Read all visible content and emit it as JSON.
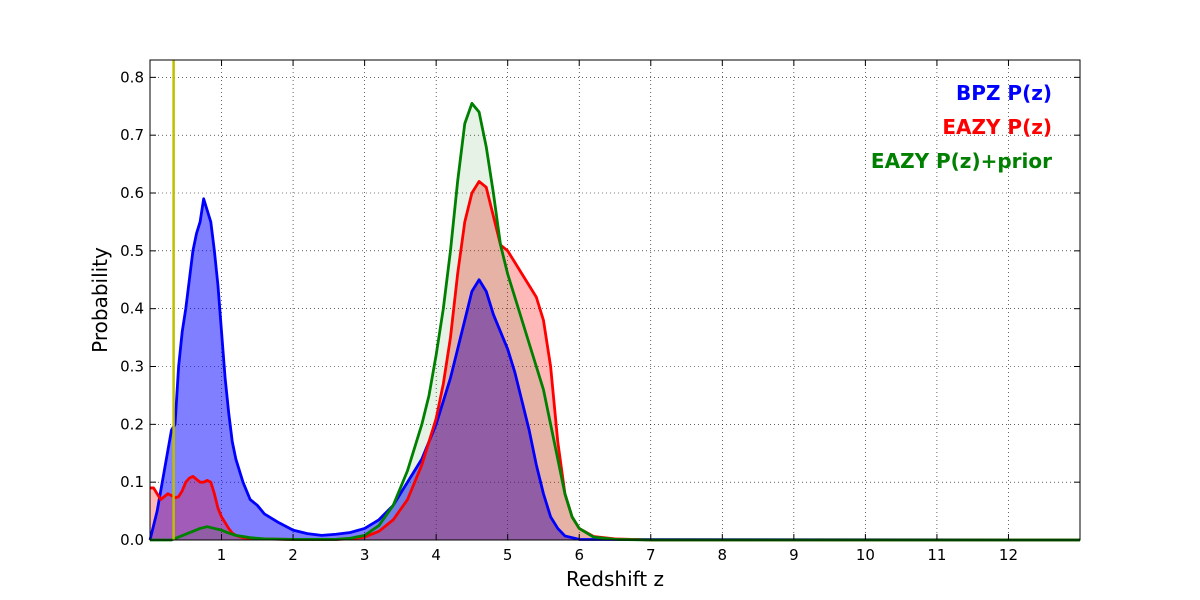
{
  "chart_data": {
    "type": "area",
    "title": "",
    "xlabel": "Redshift z",
    "ylabel": "Probability",
    "xlim": [
      0,
      13
    ],
    "ylim": [
      0,
      0.83
    ],
    "grid": true,
    "grid_style": "dotted",
    "legend_placement": "top-right",
    "x_ticks": [
      1,
      2,
      3,
      4,
      5,
      6,
      7,
      8,
      9,
      10,
      11,
      12
    ],
    "y_ticks": [
      0.0,
      0.1,
      0.2,
      0.3,
      0.4,
      0.5,
      0.6,
      0.7,
      0.8
    ],
    "vertical_line": {
      "x": 0.33,
      "color": "#bfbf00"
    },
    "series": [
      {
        "name": "BPZ P(z)",
        "color": "#0000ff",
        "fill_opacity": 0.5,
        "points": [
          [
            0,
            0
          ],
          [
            0.1,
            0.05
          ],
          [
            0.2,
            0.12
          ],
          [
            0.3,
            0.19
          ],
          [
            0.35,
            0.2
          ],
          [
            0.4,
            0.3
          ],
          [
            0.45,
            0.36
          ],
          [
            0.5,
            0.4
          ],
          [
            0.55,
            0.45
          ],
          [
            0.6,
            0.5
          ],
          [
            0.65,
            0.53
          ],
          [
            0.7,
            0.55
          ],
          [
            0.75,
            0.59
          ],
          [
            0.8,
            0.57
          ],
          [
            0.85,
            0.55
          ],
          [
            0.9,
            0.5
          ],
          [
            0.95,
            0.44
          ],
          [
            1.0,
            0.36
          ],
          [
            1.05,
            0.28
          ],
          [
            1.1,
            0.22
          ],
          [
            1.15,
            0.17
          ],
          [
            1.2,
            0.14
          ],
          [
            1.3,
            0.1
          ],
          [
            1.4,
            0.07
          ],
          [
            1.5,
            0.06
          ],
          [
            1.6,
            0.045
          ],
          [
            1.8,
            0.03
          ],
          [
            2.0,
            0.017
          ],
          [
            2.2,
            0.011
          ],
          [
            2.4,
            0.008
          ],
          [
            2.6,
            0.01
          ],
          [
            2.8,
            0.013
          ],
          [
            3.0,
            0.02
          ],
          [
            3.2,
            0.035
          ],
          [
            3.4,
            0.06
          ],
          [
            3.6,
            0.1
          ],
          [
            3.8,
            0.14
          ],
          [
            4.0,
            0.2
          ],
          [
            4.2,
            0.28
          ],
          [
            4.3,
            0.33
          ],
          [
            4.4,
            0.38
          ],
          [
            4.5,
            0.43
          ],
          [
            4.6,
            0.45
          ],
          [
            4.7,
            0.43
          ],
          [
            4.8,
            0.39
          ],
          [
            4.9,
            0.36
          ],
          [
            5.0,
            0.33
          ],
          [
            5.1,
            0.29
          ],
          [
            5.2,
            0.24
          ],
          [
            5.3,
            0.19
          ],
          [
            5.4,
            0.13
          ],
          [
            5.5,
            0.08
          ],
          [
            5.6,
            0.04
          ],
          [
            5.7,
            0.02
          ],
          [
            5.8,
            0.007
          ],
          [
            6.0,
            0.001
          ],
          [
            13,
            0
          ]
        ]
      },
      {
        "name": "EAZY P(z)",
        "color": "#ff0000",
        "fill_opacity": 0.28,
        "points": [
          [
            0,
            0.09
          ],
          [
            0.05,
            0.09
          ],
          [
            0.1,
            0.08
          ],
          [
            0.15,
            0.07
          ],
          [
            0.2,
            0.075
          ],
          [
            0.25,
            0.08
          ],
          [
            0.3,
            0.077
          ],
          [
            0.35,
            0.073
          ],
          [
            0.4,
            0.075
          ],
          [
            0.45,
            0.085
          ],
          [
            0.5,
            0.1
          ],
          [
            0.55,
            0.107
          ],
          [
            0.6,
            0.11
          ],
          [
            0.7,
            0.1
          ],
          [
            0.75,
            0.1
          ],
          [
            0.8,
            0.103
          ],
          [
            0.85,
            0.1
          ],
          [
            0.9,
            0.08
          ],
          [
            0.95,
            0.055
          ],
          [
            1.0,
            0.04
          ],
          [
            1.05,
            0.03
          ],
          [
            1.1,
            0.02
          ],
          [
            1.15,
            0.012
          ],
          [
            1.2,
            0.008
          ],
          [
            1.3,
            0.004
          ],
          [
            1.5,
            0.002
          ],
          [
            2.0,
            0.001
          ],
          [
            2.6,
            0.001
          ],
          [
            2.8,
            0.002
          ],
          [
            3.0,
            0.005
          ],
          [
            3.2,
            0.015
          ],
          [
            3.4,
            0.035
          ],
          [
            3.6,
            0.07
          ],
          [
            3.8,
            0.13
          ],
          [
            4.0,
            0.21
          ],
          [
            4.1,
            0.27
          ],
          [
            4.2,
            0.35
          ],
          [
            4.3,
            0.46
          ],
          [
            4.4,
            0.55
          ],
          [
            4.5,
            0.6
          ],
          [
            4.6,
            0.62
          ],
          [
            4.7,
            0.61
          ],
          [
            4.8,
            0.56
          ],
          [
            4.9,
            0.51
          ],
          [
            5.0,
            0.5
          ],
          [
            5.1,
            0.48
          ],
          [
            5.2,
            0.46
          ],
          [
            5.3,
            0.44
          ],
          [
            5.4,
            0.42
          ],
          [
            5.5,
            0.38
          ],
          [
            5.6,
            0.3
          ],
          [
            5.7,
            0.17
          ],
          [
            5.8,
            0.08
          ],
          [
            5.9,
            0.04
          ],
          [
            6.0,
            0.02
          ],
          [
            6.2,
            0.006
          ],
          [
            6.5,
            0.002
          ],
          [
            7.0,
            0
          ],
          [
            13,
            0
          ]
        ]
      },
      {
        "name": "EAZY P(z)+prior",
        "color": "#008000",
        "fill_opacity": 0.1,
        "points": [
          [
            0,
            0
          ],
          [
            0.3,
            0
          ],
          [
            0.4,
            0.005
          ],
          [
            0.5,
            0.01
          ],
          [
            0.6,
            0.015
          ],
          [
            0.7,
            0.02
          ],
          [
            0.8,
            0.023
          ],
          [
            0.9,
            0.02
          ],
          [
            1.0,
            0.017
          ],
          [
            1.1,
            0.012
          ],
          [
            1.2,
            0.008
          ],
          [
            1.4,
            0.004
          ],
          [
            1.6,
            0.002
          ],
          [
            2.0,
            0.001
          ],
          [
            2.6,
            0.001
          ],
          [
            2.8,
            0.003
          ],
          [
            3.0,
            0.008
          ],
          [
            3.2,
            0.025
          ],
          [
            3.4,
            0.06
          ],
          [
            3.6,
            0.12
          ],
          [
            3.8,
            0.2
          ],
          [
            3.9,
            0.25
          ],
          [
            4.0,
            0.32
          ],
          [
            4.1,
            0.4
          ],
          [
            4.2,
            0.5
          ],
          [
            4.3,
            0.62
          ],
          [
            4.4,
            0.72
          ],
          [
            4.5,
            0.755
          ],
          [
            4.6,
            0.74
          ],
          [
            4.7,
            0.68
          ],
          [
            4.8,
            0.6
          ],
          [
            4.9,
            0.51
          ],
          [
            5.0,
            0.46
          ],
          [
            5.1,
            0.42
          ],
          [
            5.2,
            0.38
          ],
          [
            5.3,
            0.34
          ],
          [
            5.4,
            0.3
          ],
          [
            5.5,
            0.26
          ],
          [
            5.6,
            0.2
          ],
          [
            5.7,
            0.14
          ],
          [
            5.8,
            0.08
          ],
          [
            5.9,
            0.04
          ],
          [
            6.0,
            0.02
          ],
          [
            6.2,
            0.005
          ],
          [
            6.5,
            0.001
          ],
          [
            7.0,
            0
          ],
          [
            13,
            0
          ]
        ]
      }
    ]
  }
}
